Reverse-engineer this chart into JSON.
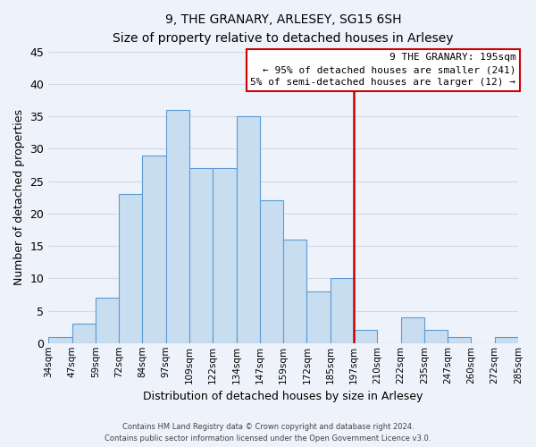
{
  "title": "9, THE GRANARY, ARLESEY, SG15 6SH",
  "subtitle": "Size of property relative to detached houses in Arlesey",
  "xlabel": "Distribution of detached houses by size in Arlesey",
  "ylabel": "Number of detached properties",
  "bin_labels": [
    "34sqm",
    "47sqm",
    "59sqm",
    "72sqm",
    "84sqm",
    "97sqm",
    "109sqm",
    "122sqm",
    "134sqm",
    "147sqm",
    "159sqm",
    "172sqm",
    "185sqm",
    "197sqm",
    "210sqm",
    "222sqm",
    "235sqm",
    "247sqm",
    "260sqm",
    "272sqm",
    "285sqm"
  ],
  "bar_values": [
    1,
    3,
    7,
    23,
    29,
    36,
    27,
    27,
    35,
    22,
    16,
    8,
    10,
    2,
    0,
    4,
    2,
    1,
    0,
    1
  ],
  "bar_color": "#c8ddf0",
  "bar_edge_color": "#5b9bd5",
  "vline_color": "#cc0000",
  "annotation_text_line1": "9 THE GRANARY: 195sqm",
  "annotation_text_line2": "← 95% of detached houses are smaller (241)",
  "annotation_text_line3": "5% of semi-detached houses are larger (12) →",
  "annotation_box_color": "#ffffff",
  "annotation_border_color": "#cc0000",
  "ylim": [
    0,
    45
  ],
  "yticks": [
    0,
    5,
    10,
    15,
    20,
    25,
    30,
    35,
    40,
    45
  ],
  "grid_color": "#d0d8e8",
  "background_color": "#eef2fa",
  "footnote_line1": "Contains HM Land Registry data © Crown copyright and database right 2024.",
  "footnote_line2": "Contains public sector information licensed under the Open Government Licence v3.0."
}
